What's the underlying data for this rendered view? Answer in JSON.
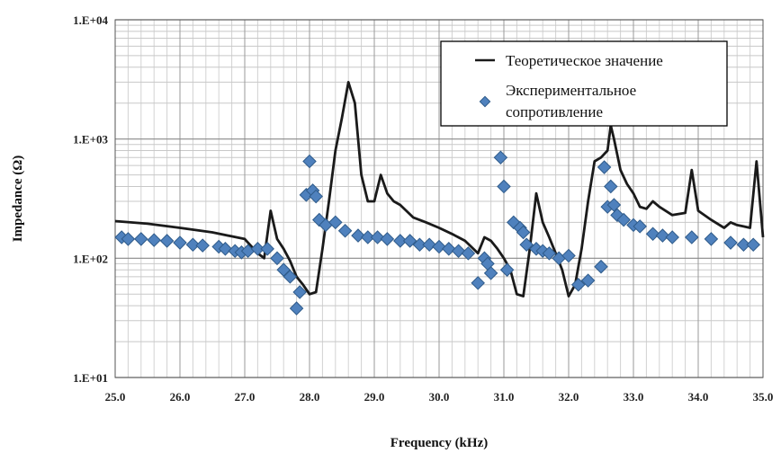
{
  "chart_data": {
    "type": "line",
    "xlabel": "Frequency (kHz)",
    "ylabel": "Impedance (Ω)",
    "xlim": [
      25.0,
      35.0
    ],
    "ylim": [
      10,
      10000
    ],
    "yscale": "log",
    "grid": true,
    "legend_position": "top-right",
    "x_ticks": [
      "25.0",
      "26.0",
      "27.0",
      "28.0",
      "29.0",
      "30.0",
      "31.0",
      "32.0",
      "33.0",
      "34.0",
      "35.0"
    ],
    "y_ticks": [
      "1.E+01",
      "1.E+02",
      "1.E+03",
      "1.E+04"
    ],
    "series": [
      {
        "name": "Теоретическое значение",
        "style": "line",
        "color": "#1a1a1a",
        "x": [
          25.0,
          25.5,
          26.0,
          26.5,
          27.0,
          27.2,
          27.3,
          27.4,
          27.5,
          27.6,
          27.7,
          27.8,
          27.9,
          28.0,
          28.1,
          28.2,
          28.3,
          28.4,
          28.5,
          28.6,
          28.7,
          28.8,
          28.9,
          29.0,
          29.1,
          29.2,
          29.3,
          29.4,
          29.6,
          29.8,
          30.0,
          30.2,
          30.4,
          30.6,
          30.7,
          30.8,
          30.9,
          31.0,
          31.1,
          31.2,
          31.3,
          31.4,
          31.5,
          31.6,
          31.7,
          31.8,
          31.9,
          32.0,
          32.1,
          32.2,
          32.3,
          32.4,
          32.5,
          32.6,
          32.65,
          32.7,
          32.8,
          32.9,
          33.0,
          33.1,
          33.2,
          33.3,
          33.4,
          33.6,
          33.8,
          33.9,
          34.0,
          34.2,
          34.4,
          34.5,
          34.6,
          34.7,
          34.8,
          34.9,
          35.0
        ],
        "y": [
          205,
          195,
          180,
          165,
          145,
          110,
          100,
          250,
          145,
          120,
          95,
          70,
          60,
          50,
          52,
          120,
          300,
          800,
          1500,
          3000,
          2000,
          500,
          300,
          300,
          500,
          350,
          300,
          280,
          220,
          200,
          180,
          160,
          140,
          110,
          150,
          140,
          120,
          100,
          80,
          50,
          48,
          120,
          350,
          200,
          150,
          110,
          80,
          48,
          60,
          120,
          300,
          650,
          700,
          800,
          1300,
          1000,
          550,
          420,
          350,
          270,
          260,
          300,
          270,
          230,
          240,
          550,
          250,
          210,
          180,
          200,
          190,
          185,
          180,
          650,
          150
        ]
      },
      {
        "name": "Экспериментальное сопротивление",
        "style": "scatter",
        "color": "#4f81bd",
        "x": [
          25.1,
          25.2,
          25.4,
          25.6,
          25.8,
          26.0,
          26.2,
          26.35,
          26.6,
          26.7,
          26.85,
          26.95,
          27.05,
          27.2,
          27.35,
          27.5,
          27.6,
          27.7,
          27.8,
          27.85,
          27.95,
          28.0,
          28.05,
          28.1,
          28.15,
          28.25,
          28.4,
          28.55,
          28.75,
          28.9,
          29.05,
          29.2,
          29.4,
          29.55,
          29.7,
          29.85,
          30.0,
          30.15,
          30.3,
          30.45,
          30.6,
          30.7,
          30.75,
          30.8,
          30.95,
          31.0,
          31.05,
          31.15,
          31.25,
          31.3,
          31.35,
          31.5,
          31.6,
          31.7,
          31.85,
          32.0,
          32.15,
          32.3,
          32.5,
          32.55,
          32.6,
          32.65,
          32.7,
          32.75,
          32.85,
          33.0,
          33.1,
          33.3,
          33.45,
          33.6,
          33.9,
          34.2,
          34.5,
          34.7,
          34.85
        ],
        "y": [
          150,
          145,
          145,
          142,
          140,
          135,
          130,
          128,
          125,
          120,
          115,
          112,
          115,
          120,
          120,
          100,
          80,
          70,
          38,
          52,
          340,
          650,
          370,
          330,
          210,
          190,
          200,
          170,
          155,
          150,
          150,
          145,
          140,
          140,
          130,
          130,
          125,
          120,
          115,
          110,
          62,
          100,
          90,
          75,
          700,
          400,
          80,
          200,
          180,
          165,
          130,
          120,
          115,
          110,
          100,
          105,
          60,
          65,
          85,
          580,
          270,
          400,
          280,
          230,
          210,
          190,
          185,
          160,
          155,
          150,
          150,
          145,
          135,
          130,
          130
        ]
      }
    ]
  }
}
